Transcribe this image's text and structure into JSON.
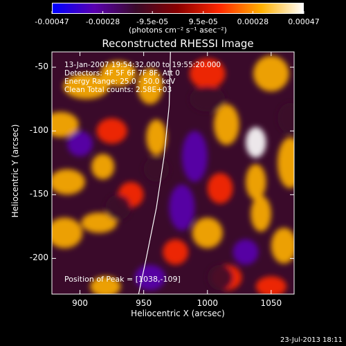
{
  "colorbar": {
    "tick_labels": [
      "-0.00047",
      "-0.00028",
      "-9.5e-05",
      "9.5e-05",
      "0.00028",
      "0.00047"
    ],
    "tick_values": [
      -0.00047,
      -0.00028,
      -9.5e-05,
      9.5e-05,
      0.00028,
      0.00047
    ],
    "range": [
      -0.00047,
      0.00047
    ],
    "unit_label": "(photons cm⁻² s⁻¹ asec⁻²)",
    "colors": [
      "#0000ff",
      "#5a00b0",
      "#3a0a2a",
      "#8a0000",
      "#ff2800",
      "#ffb000",
      "#ffffff"
    ]
  },
  "chart": {
    "title": "Reconstructed RHESSI Image",
    "info_lines": [
      "13-Jan-2007 19:54:32.000 to 19:55:20.000",
      "Detectors: 4F 5F 6F 7F 8F, Att 0",
      "Energy Range: 25.0 - 50.0 keV",
      "Clean     Total counts: 2.58E+03"
    ],
    "peak_text": "Position of Peak = [1038,-109]",
    "footer": "23-Jul-2013 18:11"
  },
  "chart_data": {
    "type": "heatmap",
    "title": "Reconstructed RHESSI Image",
    "xlabel": "Heliocentric X (arcsec)",
    "ylabel": "Heliocentric Y (arcsec)",
    "xlim": [
      878,
      1068
    ],
    "ylim": [
      -228,
      -38
    ],
    "x_ticks": [
      900,
      950,
      1000,
      1050
    ],
    "x_tick_labels": [
      "900",
      "950",
      "1000",
      "1050"
    ],
    "y_ticks": [
      -50,
      -100,
      -150,
      -200
    ],
    "y_tick_labels": [
      "-50",
      "-100",
      "-150",
      "-200"
    ],
    "peak": {
      "x": 1038,
      "y": -109
    },
    "limb_curve": [
      {
        "x": 971,
        "y": -38
      },
      {
        "x": 970,
        "y": -80
      },
      {
        "x": 966,
        "y": -120
      },
      {
        "x": 960,
        "y": -160
      },
      {
        "x": 952,
        "y": -200
      },
      {
        "x": 946,
        "y": -228
      }
    ],
    "blobs": [
      {
        "x": 905,
        "y": -65,
        "v": 0.00035,
        "sx": 18,
        "sy": 10
      },
      {
        "x": 930,
        "y": -55,
        "v": 0.00025,
        "sx": 14,
        "sy": 10
      },
      {
        "x": 955,
        "y": -65,
        "v": 0.0003,
        "sx": 10,
        "sy": 14
      },
      {
        "x": 1000,
        "y": -55,
        "v": 0.00022,
        "sx": 14,
        "sy": 12
      },
      {
        "x": 1050,
        "y": -55,
        "v": 0.00028,
        "sx": 14,
        "sy": 14
      },
      {
        "x": 885,
        "y": -95,
        "v": 0.0003,
        "sx": 14,
        "sy": 10
      },
      {
        "x": 925,
        "y": -100,
        "v": 0.0002,
        "sx": 12,
        "sy": 10
      },
      {
        "x": 960,
        "y": -105,
        "v": 0.00025,
        "sx": 8,
        "sy": 14
      },
      {
        "x": 1015,
        "y": -95,
        "v": 0.0003,
        "sx": 10,
        "sy": 16
      },
      {
        "x": 1038,
        "y": -109,
        "v": 0.00047,
        "sx": 8,
        "sy": 12
      },
      {
        "x": 1038,
        "y": -140,
        "v": 0.00033,
        "sx": 8,
        "sy": 14
      },
      {
        "x": 1042,
        "y": -165,
        "v": 0.00028,
        "sx": 8,
        "sy": 14
      },
      {
        "x": 918,
        "y": -128,
        "v": 0.00038,
        "sx": 9,
        "sy": 10
      },
      {
        "x": 890,
        "y": -140,
        "v": 0.00025,
        "sx": 14,
        "sy": 10
      },
      {
        "x": 940,
        "y": -150,
        "v": 0.00022,
        "sx": 10,
        "sy": 10
      },
      {
        "x": 1010,
        "y": -145,
        "v": 0.0002,
        "sx": 10,
        "sy": 12
      },
      {
        "x": 1065,
        "y": -125,
        "v": 0.00024,
        "sx": 10,
        "sy": 20
      },
      {
        "x": 1000,
        "y": -180,
        "v": 0.00025,
        "sx": 12,
        "sy": 12
      },
      {
        "x": 1060,
        "y": -190,
        "v": 0.0003,
        "sx": 10,
        "sy": 14
      },
      {
        "x": 888,
        "y": -180,
        "v": 0.00032,
        "sx": 14,
        "sy": 12
      },
      {
        "x": 915,
        "y": -172,
        "v": 0.0003,
        "sx": 14,
        "sy": 8
      },
      {
        "x": 975,
        "y": -195,
        "v": 0.00018,
        "sx": 10,
        "sy": 10
      },
      {
        "x": 1015,
        "y": -215,
        "v": 0.0002,
        "sx": 12,
        "sy": 10
      },
      {
        "x": 920,
        "y": -222,
        "v": 0.0003,
        "sx": 12,
        "sy": 8
      },
      {
        "x": 1050,
        "y": -222,
        "v": 0.00022,
        "sx": 12,
        "sy": 8
      },
      {
        "x": 990,
        "y": -120,
        "v": -0.0003,
        "sx": 10,
        "sy": 20
      },
      {
        "x": 980,
        "y": -160,
        "v": -0.00035,
        "sx": 10,
        "sy": 18
      },
      {
        "x": 1000,
        "y": -75,
        "v": -0.0002,
        "sx": 14,
        "sy": 10
      },
      {
        "x": 900,
        "y": -110,
        "v": -0.00025,
        "sx": 10,
        "sy": 10
      },
      {
        "x": 930,
        "y": -160,
        "v": -0.00022,
        "sx": 10,
        "sy": 10
      },
      {
        "x": 1030,
        "y": -195,
        "v": -0.00025,
        "sx": 10,
        "sy": 10
      },
      {
        "x": 955,
        "y": -215,
        "v": -0.00025,
        "sx": 12,
        "sy": 10
      },
      {
        "x": 1065,
        "y": -90,
        "v": -0.0002,
        "sx": 10,
        "sy": 12
      },
      {
        "x": 960,
        "y": -130,
        "v": -0.00015,
        "sx": 10,
        "sy": 10
      },
      {
        "x": 1010,
        "y": -215,
        "v": -0.00018,
        "sx": 10,
        "sy": 10
      }
    ]
  }
}
